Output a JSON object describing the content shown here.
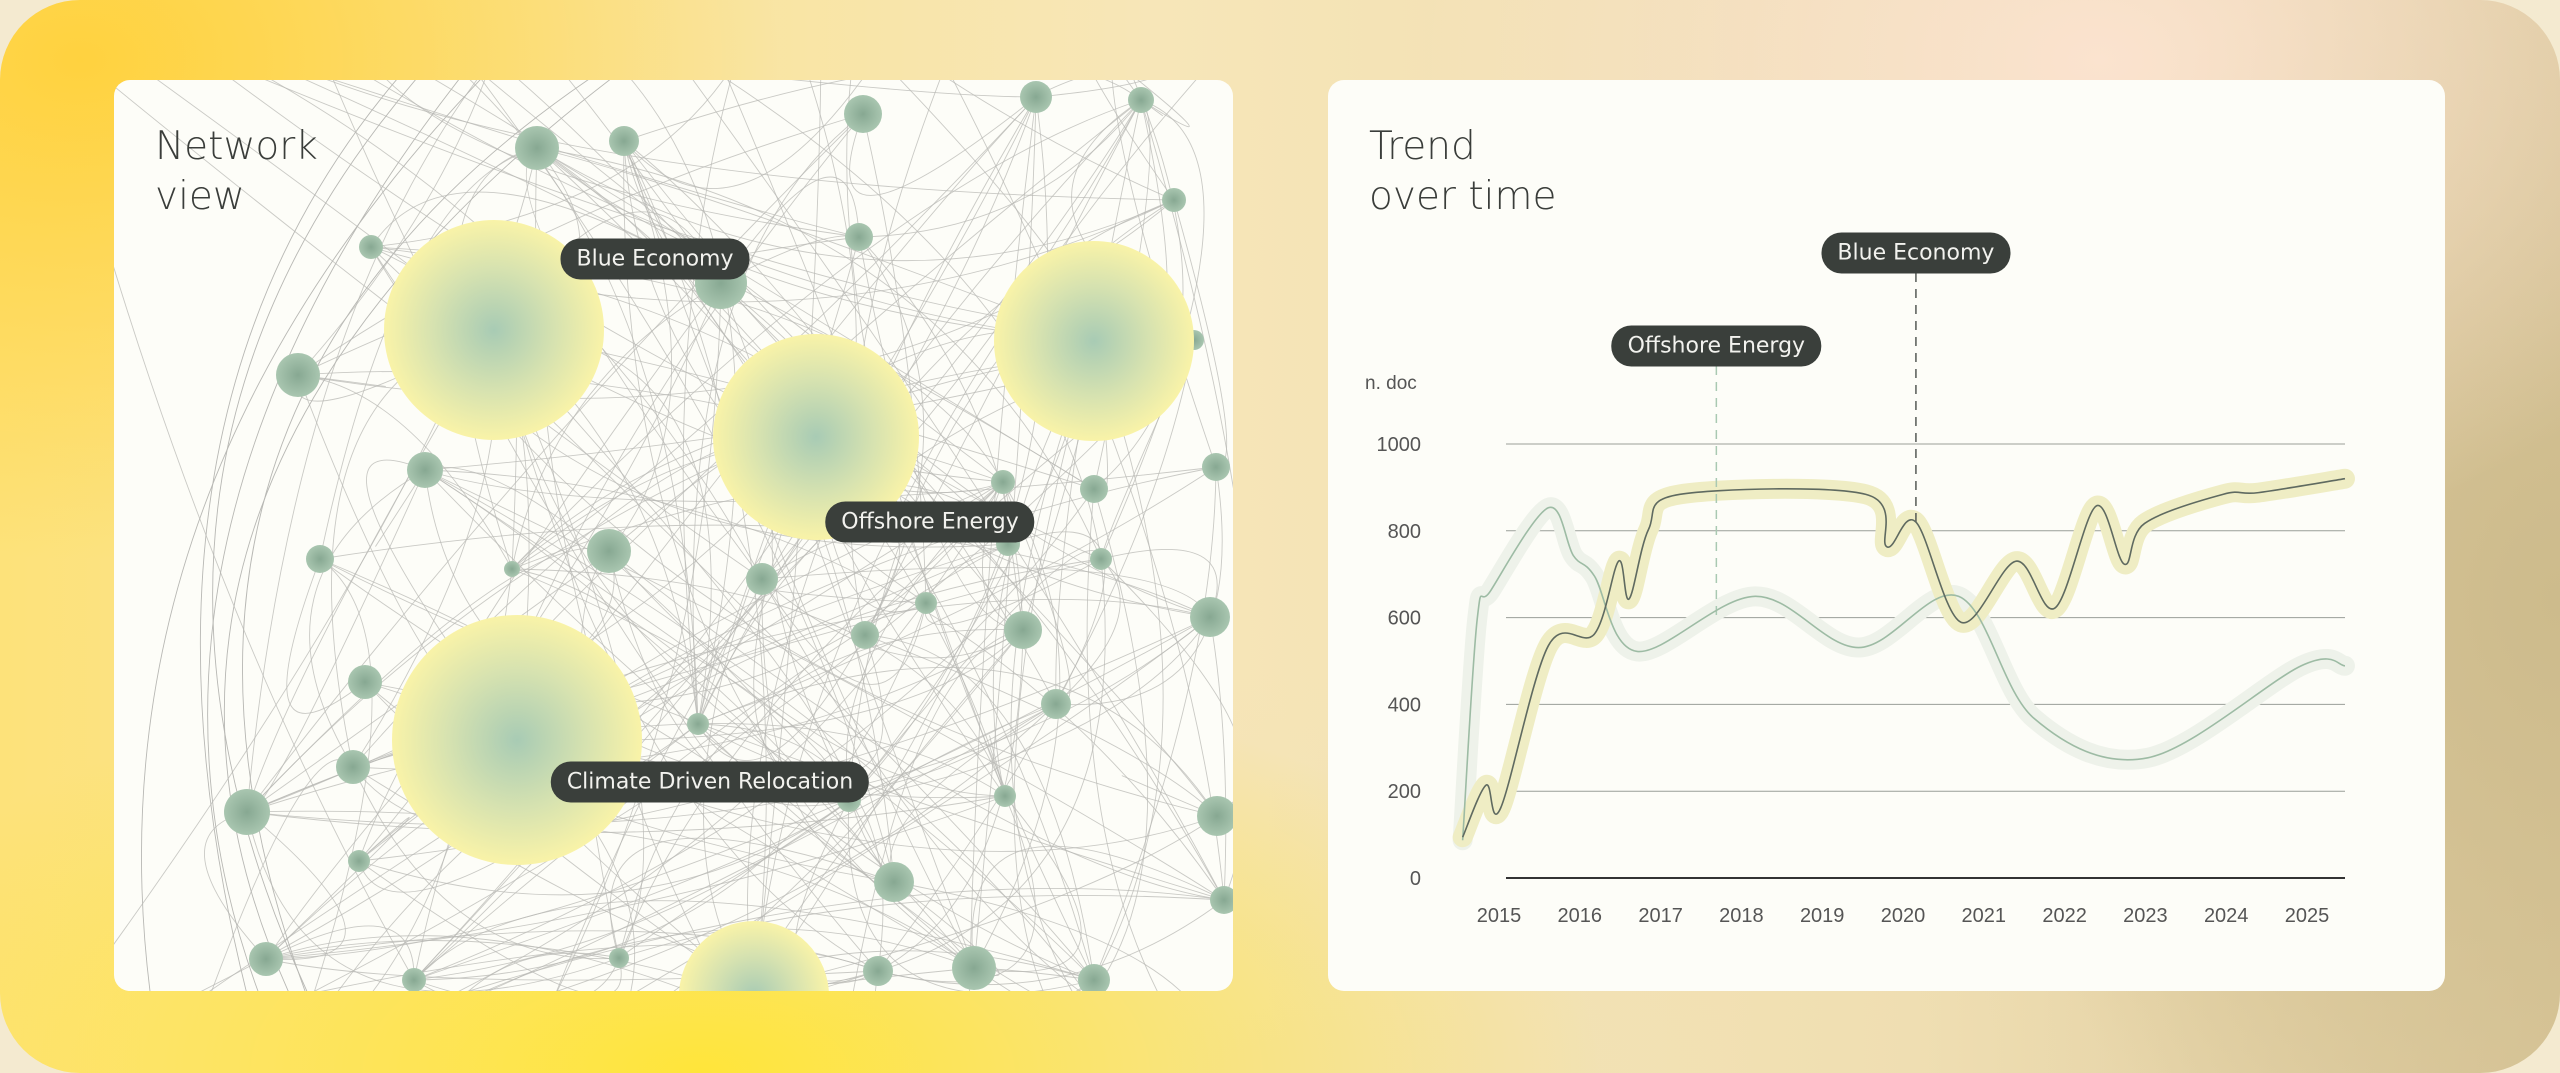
{
  "network": {
    "title": "Network\nview",
    "labels": [
      "Blue Economy",
      "Offshore Energy",
      "Climate Driven Relocation"
    ],
    "node_color": "#9dbba4",
    "hub_color": "#f8f2a8",
    "edge_color": "#b8b8b4"
  },
  "trend": {
    "title": "Trend\nover time",
    "chart_data": {
      "type": "line",
      "ylabel": "n. doc",
      "xlabel": "",
      "ylim": [
        0,
        1000
      ],
      "yticks": [
        0,
        200,
        400,
        600,
        800,
        1000
      ],
      "xticks": [
        "2015",
        "2016",
        "2017",
        "2018",
        "2019",
        "2020",
        "2021",
        "2022",
        "2023",
        "2024",
        "2025"
      ],
      "grid": true,
      "series": [
        {
          "name": "Blue Economy",
          "color": "#5f6a60",
          "glow": "#efedc4",
          "points": [
            [
              2014.55,
              94
            ],
            [
              2014.84,
              214
            ],
            [
              2015.02,
              161
            ],
            [
              2015.61,
              535
            ],
            [
              2016.18,
              562
            ],
            [
              2016.48,
              730
            ],
            [
              2016.61,
              643
            ],
            [
              2016.85,
              803
            ],
            [
              2017.24,
              884
            ],
            [
              2019.54,
              884
            ],
            [
              2019.8,
              763
            ],
            [
              2020.16,
              820
            ],
            [
              2020.72,
              589
            ],
            [
              2021.4,
              730
            ],
            [
              2021.88,
              622
            ],
            [
              2022.39,
              857
            ],
            [
              2022.74,
              723
            ],
            [
              2022.99,
              817
            ],
            [
              2023.96,
              884
            ],
            [
              2024.4,
              888
            ],
            [
              2025.47,
              920
            ]
          ]
        },
        {
          "name": "Offshore Energy",
          "color": "#9dbba4",
          "glow": "#eef2ea",
          "points": [
            [
              2014.55,
              87
            ],
            [
              2014.73,
              596
            ],
            [
              2014.9,
              663
            ],
            [
              2015.61,
              853
            ],
            [
              2015.92,
              743
            ],
            [
              2016.18,
              696
            ],
            [
              2016.71,
              522
            ],
            [
              2018.17,
              649
            ],
            [
              2019.45,
              531
            ],
            [
              2020.69,
              649
            ],
            [
              2021.62,
              368
            ],
            [
              2023.03,
              277
            ],
            [
              2024.93,
              489
            ],
            [
              2025.47,
              489
            ]
          ]
        }
      ],
      "annotations": [
        {
          "label": "Offshore Energy",
          "x": 2017.69,
          "y": 600,
          "color": "#a9c9b2"
        },
        {
          "label": "Blue Economy",
          "x": 2020.16,
          "y": 820,
          "color": "#555a55"
        }
      ]
    }
  }
}
